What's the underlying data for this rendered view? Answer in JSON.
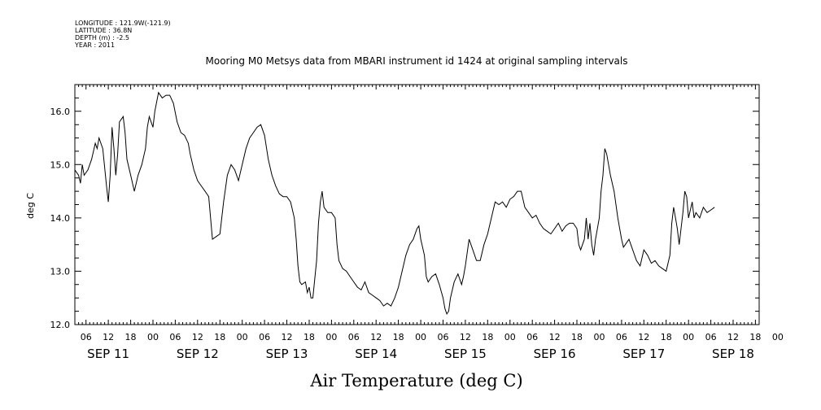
{
  "metadata_lines": [
    "LONGITUDE : 121.9W(-121.9)",
    "LATITUDE : 36.8N",
    "DEPTH (m) : -2.5",
    "YEAR : 2011"
  ],
  "chart_data": {
    "type": "line",
    "title": "Mooring M0 Metsys data from MBARI instrument id 1424 at original sampling intervals",
    "xlabel": "Air Temperature (deg C)",
    "ylabel": "deg C",
    "ylim": [
      12.0,
      16.5
    ],
    "yticks": [
      "12.0",
      "13.0",
      "14.0",
      "15.0",
      "16.0"
    ],
    "xlim_hours": [
      -21,
      163
    ],
    "hour_tick_labels": [
      "06",
      "12",
      "18",
      "00",
      "06",
      "12",
      "18",
      "00",
      "06",
      "12",
      "18",
      "00",
      "06",
      "12",
      "18",
      "00",
      "06",
      "12",
      "18",
      "00",
      "06",
      "12",
      "18",
      "00",
      "06",
      "12",
      "18",
      "00",
      "06",
      "12",
      "18",
      "00"
    ],
    "day_labels": [
      "SEP 11",
      "SEP 12",
      "SEP 13",
      "SEP 14",
      "SEP 15",
      "SEP 16",
      "SEP 17",
      "SEP 18"
    ],
    "grid": false,
    "series": [
      {
        "values": [
          [
            -21,
            14.9
          ],
          [
            -20,
            14.8
          ],
          [
            -19.5,
            14.65
          ],
          [
            -19,
            15.0
          ],
          [
            -18.5,
            14.8
          ],
          [
            -17.5,
            14.9
          ],
          [
            -16.5,
            15.1
          ],
          [
            -15.5,
            15.4
          ],
          [
            -15,
            15.3
          ],
          [
            -14.5,
            15.5
          ],
          [
            -13.5,
            15.3
          ],
          [
            -13,
            14.95
          ],
          [
            -12.5,
            14.6
          ],
          [
            -12,
            14.3
          ],
          [
            -11.5,
            14.8
          ],
          [
            -11,
            15.7
          ],
          [
            -10.5,
            15.3
          ],
          [
            -10,
            14.8
          ],
          [
            -9.5,
            15.2
          ],
          [
            -9,
            15.8
          ],
          [
            -8,
            15.9
          ],
          [
            -7.5,
            15.6
          ],
          [
            -7,
            15.1
          ],
          [
            -6,
            14.8
          ],
          [
            -5,
            14.5
          ],
          [
            -4,
            14.8
          ],
          [
            -3,
            15.0
          ],
          [
            -2,
            15.3
          ],
          [
            -1.5,
            15.7
          ],
          [
            -1,
            15.9
          ],
          [
            0,
            15.7
          ],
          [
            0.5,
            16.0
          ],
          [
            1.5,
            16.35
          ],
          [
            2.5,
            16.25
          ],
          [
            3.5,
            16.3
          ],
          [
            4.5,
            16.3
          ],
          [
            5.5,
            16.15
          ],
          [
            6.5,
            15.8
          ],
          [
            7.5,
            15.6
          ],
          [
            8.5,
            15.55
          ],
          [
            9.5,
            15.4
          ],
          [
            10,
            15.2
          ],
          [
            11,
            14.9
          ],
          [
            12,
            14.7
          ],
          [
            13,
            14.6
          ],
          [
            14,
            14.5
          ],
          [
            15,
            14.4
          ],
          [
            15.5,
            14.0
          ],
          [
            16,
            13.6
          ],
          [
            17,
            13.65
          ],
          [
            18,
            13.7
          ],
          [
            19,
            14.3
          ],
          [
            19.5,
            14.55
          ],
          [
            20,
            14.8
          ],
          [
            21,
            15.0
          ],
          [
            22,
            14.9
          ],
          [
            23,
            14.7
          ],
          [
            24,
            15.0
          ],
          [
            25,
            15.3
          ],
          [
            26,
            15.5
          ],
          [
            27,
            15.6
          ],
          [
            28,
            15.7
          ],
          [
            29,
            15.75
          ],
          [
            30,
            15.55
          ],
          [
            31,
            15.1
          ],
          [
            32,
            14.8
          ],
          [
            33,
            14.6
          ],
          [
            34,
            14.45
          ],
          [
            35,
            14.4
          ],
          [
            36,
            14.4
          ],
          [
            37,
            14.3
          ],
          [
            38,
            14.0
          ],
          [
            38.5,
            13.6
          ],
          [
            39,
            13.1
          ],
          [
            39.5,
            12.8
          ],
          [
            40,
            12.75
          ],
          [
            41,
            12.8
          ],
          [
            41.5,
            12.6
          ],
          [
            42,
            12.7
          ],
          [
            42.5,
            12.5
          ],
          [
            43,
            12.5
          ],
          [
            43.5,
            12.85
          ],
          [
            44,
            13.2
          ],
          [
            44.5,
            13.9
          ],
          [
            45,
            14.3
          ],
          [
            45.5,
            14.5
          ],
          [
            46,
            14.2
          ],
          [
            47,
            14.1
          ],
          [
            48,
            14.1
          ],
          [
            49,
            14.0
          ],
          [
            49.5,
            13.5
          ],
          [
            50,
            13.2
          ],
          [
            51,
            13.05
          ],
          [
            52,
            13.0
          ],
          [
            53,
            12.9
          ],
          [
            54,
            12.8
          ],
          [
            55,
            12.7
          ],
          [
            56,
            12.65
          ],
          [
            57,
            12.8
          ],
          [
            58,
            12.6
          ],
          [
            59,
            12.55
          ],
          [
            60,
            12.5
          ],
          [
            61,
            12.45
          ],
          [
            62,
            12.35
          ],
          [
            63,
            12.4
          ],
          [
            64,
            12.35
          ],
          [
            65,
            12.5
          ],
          [
            66,
            12.7
          ],
          [
            67,
            13.0
          ],
          [
            68,
            13.3
          ],
          [
            69,
            13.5
          ],
          [
            70,
            13.6
          ],
          [
            71,
            13.8
          ],
          [
            71.5,
            13.85
          ],
          [
            72,
            13.6
          ],
          [
            73,
            13.3
          ],
          [
            73.5,
            12.9
          ],
          [
            74,
            12.8
          ],
          [
            75,
            12.9
          ],
          [
            76,
            12.95
          ],
          [
            77,
            12.75
          ],
          [
            78,
            12.5
          ],
          [
            78.5,
            12.3
          ],
          [
            79,
            12.2
          ],
          [
            79.5,
            12.25
          ],
          [
            80,
            12.5
          ],
          [
            81,
            12.8
          ],
          [
            82,
            12.95
          ],
          [
            83,
            12.75
          ],
          [
            83.5,
            12.9
          ],
          [
            84,
            13.1
          ],
          [
            85,
            13.6
          ],
          [
            86,
            13.4
          ],
          [
            87,
            13.2
          ],
          [
            88,
            13.2
          ],
          [
            89,
            13.5
          ],
          [
            90,
            13.7
          ],
          [
            91,
            14.0
          ],
          [
            92,
            14.3
          ],
          [
            93,
            14.25
          ],
          [
            94,
            14.3
          ],
          [
            95,
            14.2
          ],
          [
            96,
            14.35
          ],
          [
            97,
            14.4
          ],
          [
            98,
            14.5
          ],
          [
            99,
            14.5
          ],
          [
            100,
            14.2
          ],
          [
            101,
            14.1
          ],
          [
            102,
            14.0
          ],
          [
            103,
            14.05
          ],
          [
            104,
            13.9
          ],
          [
            105,
            13.8
          ],
          [
            106,
            13.75
          ],
          [
            107,
            13.7
          ],
          [
            108,
            13.8
          ],
          [
            109,
            13.9
          ],
          [
            110,
            13.75
          ],
          [
            111,
            13.85
          ],
          [
            112,
            13.9
          ],
          [
            113,
            13.9
          ],
          [
            114,
            13.8
          ],
          [
            114.5,
            13.5
          ],
          [
            115,
            13.4
          ],
          [
            116,
            13.6
          ],
          [
            116.5,
            14.0
          ],
          [
            117,
            13.6
          ],
          [
            117.5,
            13.9
          ],
          [
            118,
            13.5
          ],
          [
            118.5,
            13.3
          ],
          [
            119,
            13.6
          ],
          [
            120,
            14.0
          ],
          [
            120.5,
            14.5
          ],
          [
            121,
            14.8
          ],
          [
            121.5,
            15.3
          ],
          [
            122,
            15.2
          ],
          [
            123,
            14.8
          ],
          [
            124,
            14.5
          ],
          [
            125,
            14.0
          ],
          [
            126,
            13.6
          ],
          [
            126.5,
            13.45
          ],
          [
            127,
            13.5
          ],
          [
            128,
            13.6
          ],
          [
            129,
            13.4
          ],
          [
            130,
            13.2
          ],
          [
            131,
            13.1
          ],
          [
            132,
            13.4
          ],
          [
            133,
            13.3
          ],
          [
            134,
            13.15
          ],
          [
            135,
            13.2
          ],
          [
            136,
            13.1
          ],
          [
            137,
            13.05
          ],
          [
            138,
            13.0
          ],
          [
            139,
            13.3
          ],
          [
            139.5,
            13.9
          ],
          [
            140,
            14.2
          ],
          [
            140.5,
            14.0
          ],
          [
            141,
            13.8
          ],
          [
            141.5,
            13.5
          ],
          [
            142,
            13.8
          ],
          [
            142.5,
            14.1
          ],
          [
            143,
            14.5
          ],
          [
            143.5,
            14.4
          ],
          [
            144,
            14.0
          ],
          [
            145,
            14.3
          ],
          [
            145.5,
            14.0
          ],
          [
            146,
            14.1
          ],
          [
            147,
            14.0
          ],
          [
            148,
            14.2
          ],
          [
            149,
            14.1
          ],
          [
            150,
            14.15
          ],
          [
            151,
            14.2
          ]
        ]
      }
    ]
  }
}
